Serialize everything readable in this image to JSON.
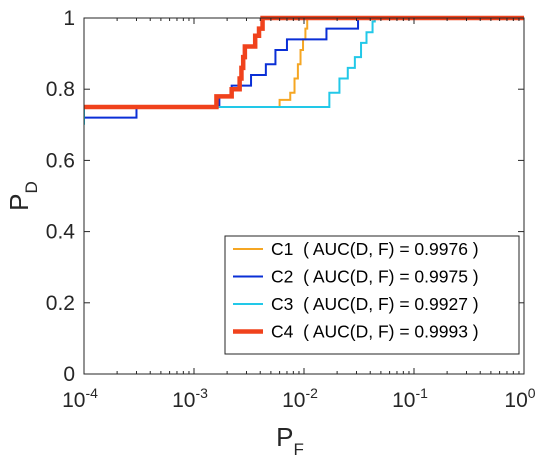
{
  "chart_data": {
    "type": "line",
    "title": "",
    "xlabel": {
      "main": "P",
      "sub": "F"
    },
    "ylabel": {
      "main": "P",
      "sub": "D"
    },
    "xscale": "log",
    "xlim": [
      0.0001,
      1
    ],
    "ylim": [
      0,
      1
    ],
    "x_ticks": [
      {
        "value": 0.0001,
        "base": "10",
        "exp": "-4"
      },
      {
        "value": 0.001,
        "base": "10",
        "exp": "-3"
      },
      {
        "value": 0.01,
        "base": "10",
        "exp": "-2"
      },
      {
        "value": 0.1,
        "base": "10",
        "exp": "-1"
      },
      {
        "value": 1,
        "base": "10",
        "exp": "0"
      }
    ],
    "y_ticks": [
      {
        "value": 0,
        "label": "0"
      },
      {
        "value": 0.2,
        "label": "0.2"
      },
      {
        "value": 0.4,
        "label": "0.4"
      },
      {
        "value": 0.6,
        "label": "0.6"
      },
      {
        "value": 0.8,
        "label": "0.8"
      },
      {
        "value": 1,
        "label": "1"
      }
    ],
    "grid": false,
    "legend_position": "bottom-right",
    "series": [
      {
        "name": "C1",
        "legend_label": "C1  ( AUC(D, F) = 0.9976 )",
        "color": "#F5A623",
        "points": [
          [
            0.0001,
            0.75
          ],
          [
            0.006,
            0.75
          ],
          [
            0.006,
            0.77
          ],
          [
            0.0075,
            0.77
          ],
          [
            0.0075,
            0.79
          ],
          [
            0.0082,
            0.79
          ],
          [
            0.0082,
            0.83
          ],
          [
            0.0088,
            0.83
          ],
          [
            0.0088,
            0.87
          ],
          [
            0.0093,
            0.87
          ],
          [
            0.0093,
            0.91
          ],
          [
            0.0098,
            0.91
          ],
          [
            0.0098,
            0.94
          ],
          [
            0.0103,
            0.94
          ],
          [
            0.0103,
            0.97
          ],
          [
            0.0107,
            0.97
          ],
          [
            0.0107,
            1.0
          ],
          [
            1,
            1.0
          ]
        ]
      },
      {
        "name": "C2",
        "legend_label": "C2  ( AUC(D, F) = 0.9975 )",
        "color": "#0A2FD6",
        "points": [
          [
            0.0001,
            0.72
          ],
          [
            0.0003,
            0.72
          ],
          [
            0.0003,
            0.75
          ],
          [
            0.0017,
            0.75
          ],
          [
            0.0017,
            0.78
          ],
          [
            0.0022,
            0.78
          ],
          [
            0.0022,
            0.81
          ],
          [
            0.0033,
            0.81
          ],
          [
            0.0033,
            0.84
          ],
          [
            0.0045,
            0.84
          ],
          [
            0.0045,
            0.87
          ],
          [
            0.0055,
            0.87
          ],
          [
            0.0055,
            0.91
          ],
          [
            0.007,
            0.91
          ],
          [
            0.007,
            0.94
          ],
          [
            0.016,
            0.94
          ],
          [
            0.016,
            0.97
          ],
          [
            0.031,
            0.97
          ],
          [
            0.031,
            1.0
          ],
          [
            1,
            1.0
          ]
        ]
      },
      {
        "name": "C3",
        "legend_label": "C3  ( AUC(D, F) = 0.9927 )",
        "color": "#22C8E8",
        "points": [
          [
            0.0001,
            0.7
          ],
          [
            0.0001,
            0.75
          ],
          [
            0.017,
            0.75
          ],
          [
            0.017,
            0.79
          ],
          [
            0.021,
            0.79
          ],
          [
            0.021,
            0.83
          ],
          [
            0.025,
            0.83
          ],
          [
            0.025,
            0.86
          ],
          [
            0.029,
            0.86
          ],
          [
            0.029,
            0.89
          ],
          [
            0.033,
            0.89
          ],
          [
            0.033,
            0.93
          ],
          [
            0.037,
            0.93
          ],
          [
            0.037,
            0.96
          ],
          [
            0.042,
            0.96
          ],
          [
            0.042,
            0.99
          ],
          [
            0.044,
            0.99
          ],
          [
            0.044,
            1.0
          ],
          [
            1,
            1.0
          ]
        ]
      },
      {
        "name": "C4",
        "legend_label": "C4  ( AUC(D, F) = 0.9993 )",
        "color": "#F0421C",
        "points": [
          [
            0.0001,
            0.75
          ],
          [
            0.0016,
            0.75
          ],
          [
            0.0016,
            0.78
          ],
          [
            0.0022,
            0.78
          ],
          [
            0.0022,
            0.8
          ],
          [
            0.0026,
            0.8
          ],
          [
            0.0026,
            0.83
          ],
          [
            0.0027,
            0.83
          ],
          [
            0.0027,
            0.86
          ],
          [
            0.0028,
            0.86
          ],
          [
            0.0028,
            0.89
          ],
          [
            0.0029,
            0.89
          ],
          [
            0.0029,
            0.92
          ],
          [
            0.0036,
            0.92
          ],
          [
            0.0036,
            0.95
          ],
          [
            0.0039,
            0.95
          ],
          [
            0.0039,
            0.97
          ],
          [
            0.0042,
            0.97
          ],
          [
            0.0042,
            1.0
          ],
          [
            1,
            1.0
          ]
        ]
      }
    ]
  }
}
